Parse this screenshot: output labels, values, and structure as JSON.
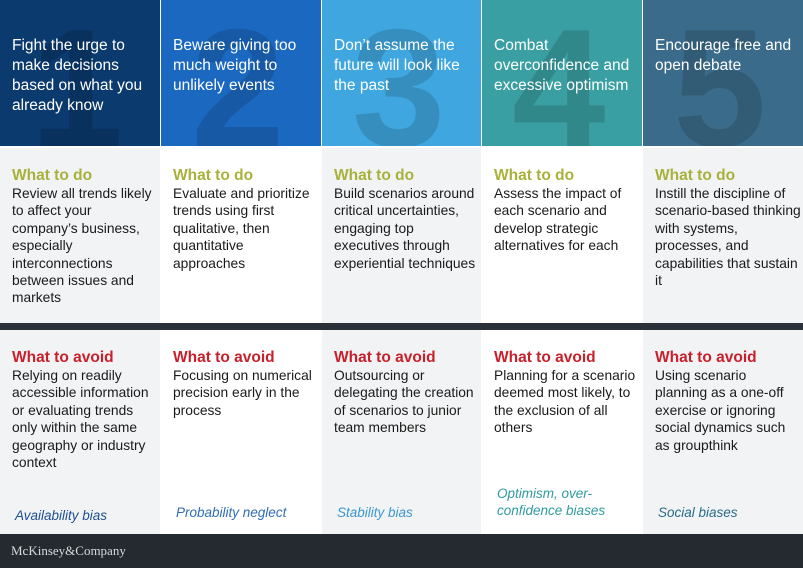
{
  "columns": [
    {
      "number": "1",
      "header": "Fight the urge to make decisions based on what you already know",
      "do_label": "What to do",
      "do_text": "Review all trends likely to affect your company’s business, especially interconnections between issues and markets",
      "avoid_label": "What to avoid",
      "avoid_text": "Relying on readily accessible information or evaluating trends only within the same geography or industry context",
      "bias": "Availability bias",
      "header_color": "#0b3a6e",
      "bias_color": "#1d4f91"
    },
    {
      "number": "2",
      "header": "Beware giving too much weight to unlikely events",
      "do_label": "What to do",
      "do_text": "Evaluate and prioritize trends using first qualitative, then quantitative approaches",
      "avoid_label": "What to avoid",
      "avoid_text": "Focusing on numerical precision early in the process",
      "bias": "Probability neglect",
      "header_color": "#1b68c0",
      "bias_color": "#2f6db5"
    },
    {
      "number": "3",
      "header": "Don’t assume the future will look like the past",
      "do_label": "What to do",
      "do_text": "Build scenarios around critical uncertainties, engaging top executives through experiential techniques",
      "avoid_label": "What to avoid",
      "avoid_text": "Outsourcing or delegating the creation of scenarios to junior team members",
      "bias": "Stability bias",
      "header_color": "#3fa6df",
      "bias_color": "#3b97cf"
    },
    {
      "number": "4",
      "header": "Combat overconfidence and excessive optimism",
      "do_label": "What to do",
      "do_text": "Assess the impact of each scenario and develop strategic alternatives for each",
      "avoid_label": "What to avoid",
      "avoid_text": "Planning for a scenario deemed most likely, to the exclusion of all others",
      "bias": "Optimism, over-confidence biases",
      "header_color": "#3a9fa2",
      "bias_color": "#2f9ba0"
    },
    {
      "number": "5",
      "header": "Encourage free and open debate",
      "do_label": "What to do",
      "do_text": "Instill the discipline of scenario-based thinking with systems, processes, and capabilities that sustain it",
      "avoid_label": "What to avoid",
      "avoid_text": "Using scenario planning as a one-off exercise or ignoring social dynamics such as groupthink",
      "bias": "Social biases",
      "header_color": "#3b6b8a",
      "bias_color": "#2a6a8a"
    }
  ],
  "footer": {
    "brand": "McKinsey&Company"
  },
  "colors": {
    "do_label": "#a9b13b",
    "avoid_label": "#c8202b",
    "band": "#2b3138",
    "footer_bg": "#252a30"
  }
}
